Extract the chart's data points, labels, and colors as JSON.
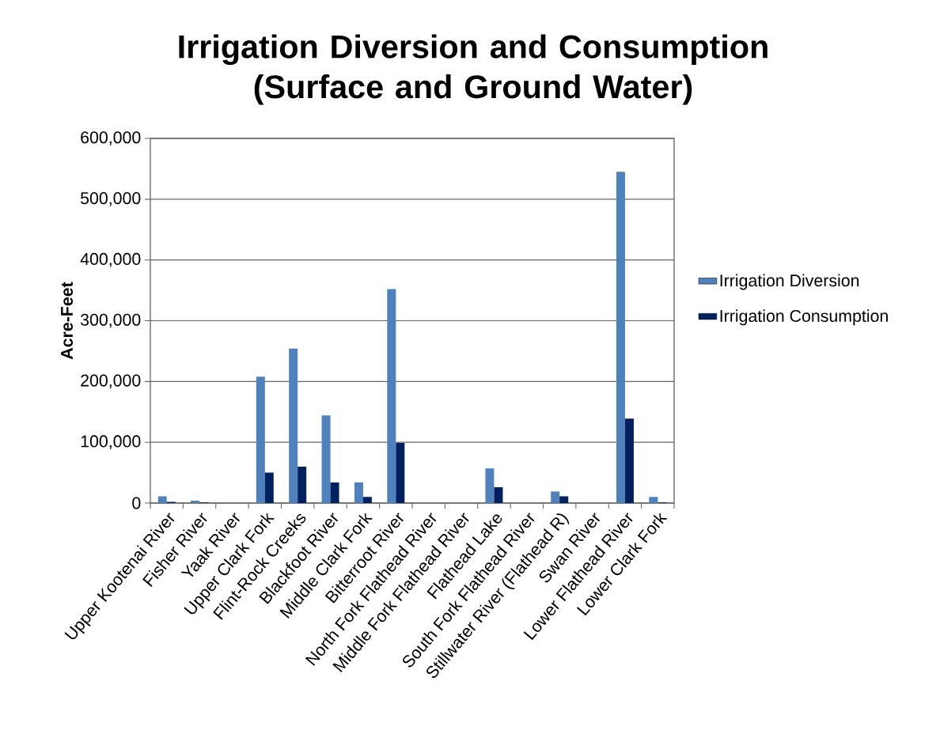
{
  "chart_data": {
    "type": "bar",
    "title": "Irrigation Diversion and Consumption (Surface and Ground Water)",
    "ylabel": "Acre-Feet",
    "categories": [
      "Upper Kootenai River",
      "Fisher River",
      "Yaak River",
      "Upper Clark Fork",
      "Flint-Rock Creeks",
      "Blackfoot River",
      "Middle Clark Fork",
      "Bitterroot River",
      "North Fork Flathead River",
      "Middle Fork Flathead River",
      "Flathead Lake",
      "South Fork Flathead River",
      "Stillwater River (Flathead R)",
      "Swan River",
      "Lower Flathead River",
      "Lower Clark Fork"
    ],
    "series": [
      {
        "name": "Irrigation Diversion",
        "color": "#4f81bd",
        "values": [
          11000,
          4000,
          0,
          208000,
          254000,
          144000,
          34000,
          352000,
          0,
          0,
          57000,
          0,
          19000,
          0,
          545000,
          10000
        ]
      },
      {
        "name": "Irrigation Consumption",
        "color": "#002060",
        "values": [
          2000,
          1000,
          0,
          50000,
          60000,
          34000,
          10000,
          99000,
          0,
          0,
          26000,
          0,
          11000,
          0,
          139000,
          1000
        ]
      }
    ],
    "ylim": [
      0,
      600000
    ],
    "yticks": [
      {
        "value": 0,
        "label": "0"
      },
      {
        "value": 100000,
        "label": "100,000"
      },
      {
        "value": 200000,
        "label": "200,000"
      },
      {
        "value": 300000,
        "label": "300,000"
      },
      {
        "value": 400000,
        "label": "400,000"
      },
      {
        "value": 500000,
        "label": "500,000"
      },
      {
        "value": 600000,
        "label": "600,000"
      }
    ],
    "grid": "y",
    "legend": "right"
  }
}
